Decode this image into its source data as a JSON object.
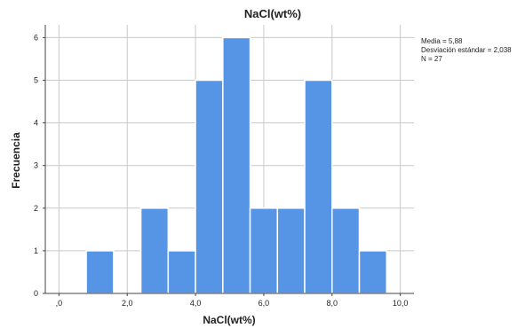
{
  "chart_data": {
    "type": "bar",
    "title": "NaCl(wt%)",
    "xlabel": "NaCl(wt%)",
    "ylabel": "Frecuencia",
    "bins": [
      [
        0.0,
        0.8
      ],
      [
        0.8,
        1.6
      ],
      [
        1.6,
        2.4
      ],
      [
        2.4,
        3.2
      ],
      [
        3.2,
        4.0
      ],
      [
        4.0,
        4.8
      ],
      [
        4.8,
        5.6
      ],
      [
        5.6,
        6.4
      ],
      [
        6.4,
        7.2
      ],
      [
        7.2,
        8.0
      ],
      [
        8.0,
        8.8
      ],
      [
        8.8,
        9.6
      ]
    ],
    "values": [
      0,
      1,
      0,
      2,
      1,
      5,
      6,
      2,
      2,
      5,
      2,
      1
    ],
    "xlim": [
      -0.4,
      10.4
    ],
    "ylim": [
      0,
      6.3
    ],
    "x_ticks": [
      0,
      2,
      4,
      6,
      8,
      10
    ],
    "x_tick_labels": [
      ",0",
      "2,0",
      "4,0",
      "6,0",
      "8,0",
      "10,0"
    ],
    "y_ticks": [
      0,
      1,
      2,
      3,
      4,
      5,
      6
    ],
    "y_tick_labels": [
      "0",
      "1",
      "2",
      "3",
      "4",
      "5",
      "6"
    ],
    "grid": true,
    "bar_color": "#5694e6",
    "stats": {
      "mean_label": "Media = 5,88",
      "std_label": "Desviación estándar = 2,038",
      "n_label": "N = 27"
    }
  }
}
